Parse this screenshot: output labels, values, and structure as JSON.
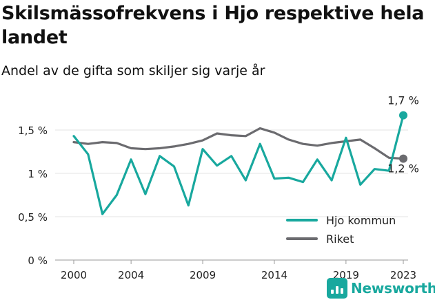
{
  "header": {
    "title": "Skilsmässofrekvens i Hjo respektive hela landet",
    "subtitle": "Andel av de gifta som skiljer sig varje år"
  },
  "brand": {
    "name": "Newsworthy",
    "icon": "newsworthy-logo-icon",
    "color": "#18a89e"
  },
  "chart_data": {
    "type": "line",
    "title": "Skilsmässofrekvens i Hjo respektive hela landet",
    "subtitle": "Andel av de gifta som skiljer sig varje år",
    "xlabel": "",
    "ylabel": "",
    "x": [
      2000,
      2001,
      2002,
      2003,
      2004,
      2005,
      2006,
      2007,
      2008,
      2009,
      2010,
      2011,
      2012,
      2013,
      2014,
      2015,
      2016,
      2017,
      2018,
      2019,
      2020,
      2021,
      2022,
      2023
    ],
    "x_ticks": [
      "2000",
      "2004",
      "2009",
      "2014",
      "2019",
      "2023"
    ],
    "x_tick_values": [
      2000,
      2004,
      2009,
      2014,
      2019,
      2023
    ],
    "y_ticks": [
      "0 %",
      "0,5 %",
      "1 %",
      "1,5 %"
    ],
    "y_tick_values": [
      0,
      0.5,
      1.0,
      1.5
    ],
    "ylim": [
      0,
      1.5
    ],
    "xlim": [
      2000,
      2023
    ],
    "grid": "horizontal",
    "legend_position": "bottom-right",
    "series": [
      {
        "name": "Hjo kommun",
        "color": "#18a89e",
        "values": [
          1.43,
          1.22,
          0.53,
          0.75,
          1.16,
          0.76,
          1.2,
          1.08,
          0.63,
          1.28,
          1.09,
          1.2,
          0.92,
          1.34,
          0.94,
          0.95,
          0.9,
          1.16,
          0.92,
          1.41,
          0.87,
          1.05,
          1.03,
          1.67
        ],
        "end_label": "1,7 %"
      },
      {
        "name": "Riket",
        "color": "#6b6b6f",
        "values": [
          1.36,
          1.34,
          1.36,
          1.35,
          1.29,
          1.28,
          1.29,
          1.31,
          1.34,
          1.38,
          1.46,
          1.44,
          1.43,
          1.52,
          1.47,
          1.39,
          1.34,
          1.32,
          1.35,
          1.37,
          1.39,
          1.29,
          1.18,
          1.17
        ],
        "end_label": "1,2 %"
      }
    ]
  }
}
